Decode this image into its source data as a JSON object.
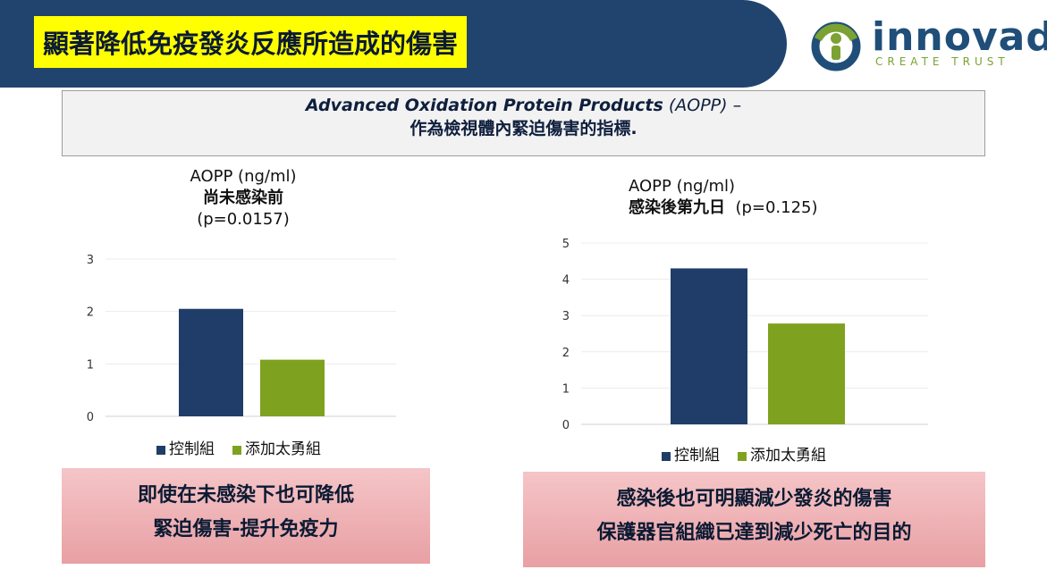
{
  "slide": {
    "title": "顯著降低免疫發炎反應所造成的傷害",
    "logo": {
      "name": "innovad",
      "registered": "®",
      "tagline": "CREATE TRUST"
    },
    "subtitle": {
      "line1_bold_italic": "Advanced Oxidation Protein Products",
      "line1_rest": " (AOPP) –",
      "line2": "作為檢視體內緊迫傷害的指標."
    },
    "colors": {
      "header_band": "#21446e",
      "title_highlight": "#ffff00",
      "control": "#1f3d68",
      "treatment": "#7ea21f",
      "logo_green": "#7ba232",
      "logo_blue": "#1f4e79"
    },
    "notes": {
      "left": {
        "line1": "即使在未感染下也可降低",
        "line2": "緊迫傷害-提升免疫力"
      },
      "right": {
        "line1": "感染後也可明顯減少發炎的傷害",
        "line2": "保護器官組織已達到減少死亡的目的"
      }
    }
  },
  "chart_data": [
    {
      "type": "bar",
      "title_unit": "AOPP (ng/ml)",
      "title_bold": "尚未感染前",
      "title_p": "(p=0.0157)",
      "categories": [
        "控制組",
        "添加太勇組"
      ],
      "values": [
        2.05,
        1.08
      ],
      "yticks": [
        "0",
        "1",
        "2",
        "3"
      ],
      "ylim": [
        0,
        3
      ],
      "grid": true,
      "legend": [
        "控制組",
        "添加太勇組"
      ],
      "legend_position": "bottom"
    },
    {
      "type": "bar",
      "title_unit": "AOPP (ng/ml)",
      "title_bold": "感染後第九日",
      "title_p": "(p=0.125)",
      "categories": [
        "控制組",
        "添加太勇組"
      ],
      "values": [
        4.3,
        2.78
      ],
      "yticks": [
        "0",
        "1",
        "2",
        "3",
        "4",
        "5"
      ],
      "ylim": [
        0,
        5
      ],
      "grid": true,
      "legend": [
        "控制組",
        "添加太勇組"
      ],
      "legend_position": "bottom"
    }
  ]
}
